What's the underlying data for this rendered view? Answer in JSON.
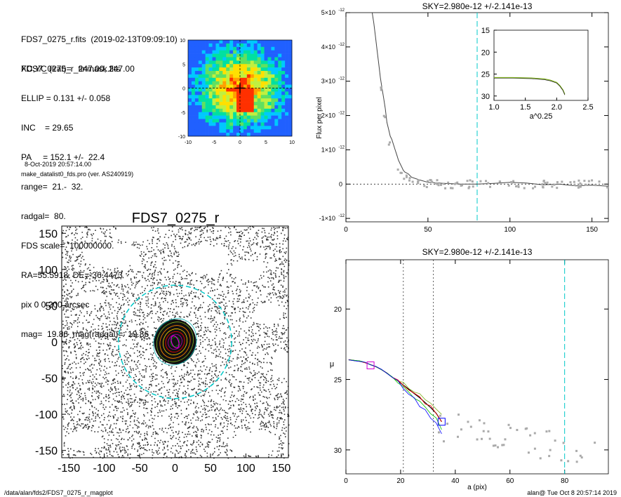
{
  "info": {
    "lines_top": [
      "FDS7_0275_r.fits  (2019-02-13T09:09:10)",
      "FDS7_0275_r_finmask.fits"
    ],
    "lines_params": [
      "XC,YC (iraf)=   247.00, 247.00",
      "ELLIP = 0.131 +/- 0.058",
      "INC    = 29.65",
      "PA     = 152.1 +/-  22.4",
      "range=  21.-  32.",
      "radgal=  80.",
      "FDS scale=  100000000.",
      "RA=55.5918  DE=-36.4473",
      "pix 0 0.200 arcsec",
      "mag=  19.86  mag(radgal)=  19.86"
    ],
    "date_line": "8-Oct-2019 20:57:14.00",
    "program_line": "make_datalist0_fds.pro (ver. AS240919)"
  },
  "footer": {
    "left": "/data/alan/fds2/FDS7_0275_r_magplot",
    "right": "alan@  Tue Oct  8 20:57:14 2019"
  },
  "colors": {
    "sky": "#00c8c8",
    "green": "#80b020",
    "blue": "#0000ff",
    "magenta": "#d000d0"
  },
  "chart_data": [
    {
      "type": "heatmap",
      "id": "thumbnail",
      "xlim": [
        -10,
        10
      ],
      "ylim": [
        -10,
        10
      ],
      "xticks": [
        "-10",
        "-5",
        "0",
        "5",
        "10"
      ],
      "yticks": [
        "10",
        "5",
        "0",
        "-5",
        "-10"
      ],
      "colormap": [
        "#2060ff",
        "#00c8ff",
        "#00e0a0",
        "#60e060",
        "#c0f040",
        "#ffe000",
        "#ffa000",
        "#ff3000"
      ]
    },
    {
      "type": "scatter",
      "id": "image",
      "title": "FDS7_0275_r",
      "xlim": [
        -160,
        160
      ],
      "ylim": [
        -160,
        160
      ],
      "xticks": [
        "-150",
        "-100",
        "-50",
        "0",
        "50",
        "100",
        "150"
      ],
      "yticks": [
        "150",
        "100",
        "50",
        "0",
        "-50",
        "-100",
        "-150"
      ],
      "radgal_circle": 80,
      "ellipses": {
        "ellip": 0.131,
        "pa": 152.1
      }
    },
    {
      "type": "line",
      "id": "flux_profile",
      "title": "SKY=2.980e-12 +/-2.141e-13",
      "ylabel": "Flux per pixel",
      "xlim": [
        0,
        160
      ],
      "ylim": [
        -1.1e-12,
        5e-12
      ],
      "xticks": [
        "0",
        "50",
        "100",
        "150"
      ],
      "ytick_values": [
        -1e-12,
        0,
        1e-12,
        2e-12,
        3e-12,
        4e-12,
        5e-12
      ],
      "ytick_mantissa": [
        "-1",
        "0",
        "1",
        "2",
        "3",
        "4",
        "5"
      ],
      "ytick_exp": "-12",
      "radgal": 80,
      "inset": {
        "xlabel": "a^0.25",
        "xlim": [
          1.0,
          2.5
        ],
        "ylim": [
          31,
          15
        ],
        "xticks": [
          "1.0",
          "1.5",
          "2.0",
          "2.5"
        ],
        "yticks": [
          "15",
          "20",
          "25",
          "30"
        ],
        "x": [
          1.0,
          1.3,
          1.6,
          1.8,
          1.9,
          2.0,
          2.05,
          2.1,
          2.13
        ],
        "y": [
          25.8,
          25.8,
          25.9,
          26.1,
          26.4,
          26.9,
          27.6,
          28.6,
          29.6
        ]
      },
      "x": [
        16,
        17,
        18,
        19,
        20,
        21,
        22,
        23,
        24,
        25,
        26,
        27,
        28,
        29,
        30,
        31,
        32,
        33,
        34,
        35,
        36,
        38,
        40,
        45,
        50,
        60,
        70,
        80,
        90,
        100,
        110,
        120,
        130,
        140,
        150,
        160
      ],
      "y": [
        5e-12,
        4.7e-12,
        4.3e-12,
        3.9e-12,
        3.5e-12,
        3.1e-12,
        2.8e-12,
        2.5e-12,
        2.2e-12,
        1.8e-12,
        1.6e-12,
        1.4e-12,
        1.3e-12,
        1.15e-12,
        1e-12,
        8.5e-13,
        7e-13,
        6e-13,
        5e-13,
        4e-13,
        3.5e-13,
        3e-13,
        2e-13,
        1.2e-13,
        5e-14,
        2e-14,
        0.0,
        0.0,
        2e-14,
        5e-14,
        3e-14,
        -2e-14,
        0.0,
        -5e-14,
        -3e-14,
        -6e-14
      ]
    },
    {
      "type": "line",
      "id": "mu_profile",
      "title": "SKY=2.980e-12 +/-2.141e-13",
      "xlabel": "a (pix)",
      "ylabel": "μ",
      "xlim": [
        0,
        96
      ],
      "ylim": [
        31.7,
        16.5
      ],
      "xticks": [
        "0",
        "20",
        "40",
        "60",
        "80"
      ],
      "yticks": [
        "20",
        "25",
        "30"
      ],
      "range_lines": [
        21,
        32
      ],
      "radgal": 80,
      "x": [
        1,
        3,
        5,
        7,
        9,
        11,
        13,
        15,
        17,
        19,
        21,
        23,
        25,
        27,
        29,
        31,
        33,
        35
      ],
      "y": [
        23.6,
        23.65,
        23.7,
        23.8,
        23.95,
        24.1,
        24.3,
        24.55,
        24.85,
        25.1,
        25.4,
        25.7,
        26.0,
        26.3,
        26.65,
        27.0,
        27.4,
        28.0
      ]
    }
  ]
}
